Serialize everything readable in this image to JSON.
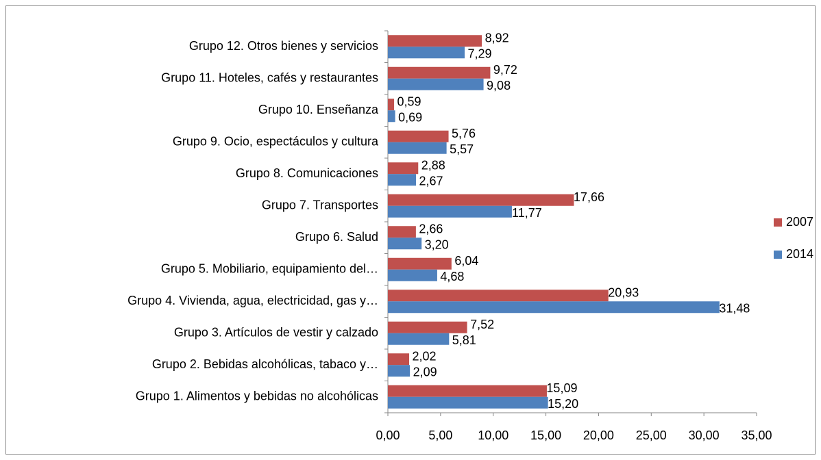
{
  "chart_data": {
    "type": "hbar",
    "categories": [
      "Grupo 1. Alimentos y bebidas no alcohólicas",
      "Grupo 2. Bebidas alcohólicas, tabaco y…",
      "Grupo 3. Artículos de vestir y calzado",
      "Grupo 4. Vivienda, agua, electricidad, gas y…",
      "Grupo 5. Mobiliario, equipamiento del…",
      "Grupo 6. Salud",
      "Grupo 7. Transportes",
      "Grupo 8. Comunicaciones",
      "Grupo 9. Ocio, espectáculos y cultura",
      "Grupo 10. Enseñanza",
      "Grupo 11. Hoteles, cafés y restaurantes",
      "Grupo 12. Otros bienes y servicios"
    ],
    "series": [
      {
        "name": "2007",
        "color": "#c0504d",
        "values": [
          15.09,
          2.02,
          7.52,
          20.93,
          6.04,
          2.66,
          17.66,
          2.88,
          5.76,
          0.59,
          9.72,
          8.92
        ],
        "value_labels": [
          "15,09",
          "2,02",
          "7,52",
          "20,93",
          "6,04",
          "2,66",
          "17,66",
          "2,88",
          "5,76",
          "0,59",
          "9,72",
          "8,92"
        ]
      },
      {
        "name": "2014",
        "color": "#4f81bd",
        "values": [
          15.2,
          2.09,
          5.81,
          31.48,
          4.68,
          3.2,
          11.77,
          2.67,
          5.57,
          0.69,
          9.08,
          7.29
        ],
        "value_labels": [
          "15,20",
          "2,09",
          "5,81",
          "31,48",
          "4,68",
          "3,20",
          "11,77",
          "2,67",
          "5,57",
          "0,69",
          "9,08",
          "7,29"
        ]
      }
    ],
    "xlim": [
      0,
      35
    ],
    "xticks": [
      {
        "value": 0,
        "label": "0,00"
      },
      {
        "value": 5,
        "label": "5,00"
      },
      {
        "value": 10,
        "label": "10,00"
      },
      {
        "value": 15,
        "label": "15,00"
      },
      {
        "value": 20,
        "label": "20,00"
      },
      {
        "value": 25,
        "label": "25,00"
      },
      {
        "value": 30,
        "label": "30,00"
      },
      {
        "value": 35,
        "label": "35,00"
      }
    ],
    "legend": "right"
  }
}
